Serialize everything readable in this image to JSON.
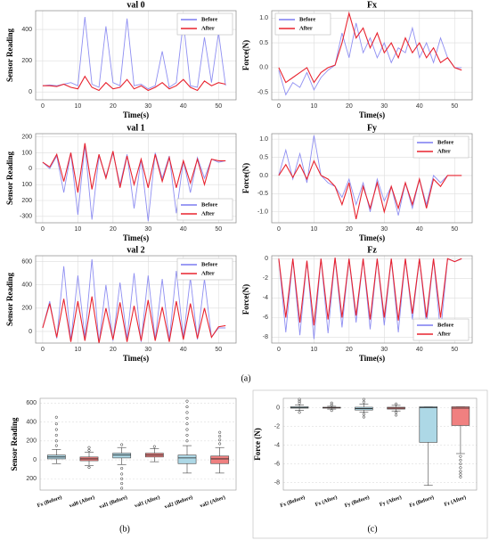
{
  "panel_labels": [
    "(a)",
    "(b)",
    "(c)"
  ],
  "chart_data": [
    {
      "type": "line",
      "title": "val 0",
      "x_label": "Time(s)",
      "y_label": "Sensor Reading",
      "legend": "upper right",
      "grid": true,
      "xlim": [
        -2,
        55
      ],
      "xticks": [
        0,
        10,
        20,
        30,
        40,
        50
      ],
      "ylim": [
        -50,
        520
      ],
      "yticks": [
        0,
        200,
        400
      ],
      "x": [
        0,
        2,
        4,
        6,
        8,
        10,
        12,
        14,
        16,
        18,
        20,
        22,
        24,
        26,
        28,
        30,
        32,
        34,
        36,
        38,
        40,
        42,
        44,
        46,
        48,
        50,
        52
      ],
      "series": [
        {
          "name": "Before",
          "color": "#7b7bf0",
          "values": [
            40,
            45,
            40,
            50,
            60,
            40,
            480,
            50,
            30,
            420,
            60,
            40,
            470,
            40,
            50,
            20,
            40,
            260,
            30,
            60,
            450,
            40,
            30,
            350,
            60,
            380,
            40
          ]
        },
        {
          "name": "After",
          "color": "#e8232f",
          "values": [
            40,
            40,
            35,
            50,
            30,
            20,
            100,
            30,
            10,
            60,
            20,
            30,
            80,
            20,
            40,
            10,
            30,
            60,
            20,
            40,
            80,
            30,
            10,
            70,
            40,
            60,
            50
          ]
        }
      ]
    },
    {
      "type": "line",
      "title": "Fx",
      "x_label": "Time(s)",
      "y_label": "Force(N)",
      "legend": "upper left",
      "grid": true,
      "xlim": [
        -2,
        55
      ],
      "xticks": [
        0,
        10,
        20,
        30,
        40,
        50
      ],
      "ylim": [
        -0.65,
        1.15
      ],
      "yticks": [
        -0.5,
        {
          "value": 0,
          "label": "0.0"
        },
        0.5,
        {
          "value": 1,
          "label": "1.0"
        }
      ],
      "x": [
        0,
        2,
        4,
        6,
        8,
        10,
        12,
        14,
        16,
        18,
        20,
        22,
        24,
        26,
        28,
        30,
        32,
        34,
        36,
        38,
        40,
        42,
        44,
        46,
        48,
        50,
        52
      ],
      "series": [
        {
          "name": "Before",
          "color": "#7b7bf0",
          "values": [
            -0.05,
            -0.55,
            -0.3,
            -0.4,
            -0.1,
            -0.45,
            -0.2,
            -0.05,
            0.05,
            0.7,
            0.2,
            0.9,
            0.3,
            0.6,
            0.2,
            0.5,
            0.1,
            0.4,
            0.3,
            0.8,
            0.2,
            0.5,
            0.1,
            0.6,
            0.2,
            0,
            0
          ]
        },
        {
          "name": "After",
          "color": "#e8232f",
          "values": [
            0,
            -0.3,
            -0.2,
            -0.1,
            0,
            -0.3,
            -0.1,
            0,
            0.05,
            0.5,
            1.1,
            0.6,
            0.8,
            0.4,
            0.7,
            0.3,
            0.5,
            0.2,
            0.6,
            0.3,
            0.5,
            0.2,
            0.4,
            0.1,
            0.2,
            0,
            -0.05
          ]
        }
      ]
    },
    {
      "type": "line",
      "title": "val 1",
      "x_label": "Time(s)",
      "y_label": "Sensor Reading",
      "legend": "lower right",
      "grid": true,
      "xlim": [
        -2,
        55
      ],
      "xticks": [
        0,
        10,
        20,
        30,
        40,
        50
      ],
      "ylim": [
        -340,
        220
      ],
      "yticks": [
        -300,
        {
          "value": -200,
          "label": "200"
        },
        {
          "value": -100,
          "label": "100"
        },
        0,
        100,
        200
      ],
      "x": [
        0,
        2,
        4,
        6,
        8,
        10,
        12,
        14,
        16,
        18,
        20,
        22,
        24,
        26,
        28,
        30,
        32,
        34,
        36,
        38,
        40,
        42,
        44,
        46,
        48,
        50,
        52
      ],
      "series": [
        {
          "name": "Before",
          "color": "#7b7bf0",
          "values": [
            40,
            0,
            80,
            -150,
            100,
            -290,
            150,
            -320,
            80,
            -50,
            100,
            -100,
            90,
            -250,
            60,
            -330,
            100,
            -60,
            80,
            -280,
            50,
            -150,
            70,
            -60,
            60,
            40,
            50
          ]
        },
        {
          "name": "After",
          "color": "#e8232f",
          "values": [
            40,
            10,
            90,
            -80,
            100,
            -150,
            160,
            -130,
            90,
            -60,
            110,
            -120,
            80,
            -100,
            60,
            -120,
            90,
            -80,
            70,
            -120,
            50,
            -90,
            60,
            -100,
            60,
            50,
            50
          ]
        }
      ]
    },
    {
      "type": "line",
      "title": "Fy",
      "x_label": "Time(s)",
      "y_label": "Force(N)",
      "legend": "upper right",
      "grid": true,
      "xlim": [
        -2,
        55
      ],
      "xticks": [
        0,
        10,
        20,
        30,
        40,
        50
      ],
      "ylim": [
        -1.3,
        1.15
      ],
      "yticks": [
        {
          "value": -1,
          "label": "-1.0"
        },
        -0.5,
        {
          "value": 0,
          "label": "0.0"
        },
        0.5,
        {
          "value": 1,
          "label": "1.0"
        }
      ],
      "x": [
        0,
        2,
        4,
        6,
        8,
        10,
        12,
        14,
        16,
        18,
        20,
        22,
        24,
        26,
        28,
        30,
        32,
        34,
        36,
        38,
        40,
        42,
        44,
        46,
        48,
        50,
        52
      ],
      "series": [
        {
          "name": "Before",
          "color": "#7b7bf0",
          "values": [
            0,
            0.7,
            -0.1,
            0.6,
            -0.2,
            1.1,
            0,
            -0.2,
            -0.3,
            -0.6,
            -0.1,
            -0.8,
            -0.2,
            -1.0,
            -0.1,
            -0.7,
            -0.3,
            -1.1,
            -0.2,
            -0.9,
            -0.1,
            -0.8,
            0,
            -0.2,
            0,
            0,
            0
          ]
        },
        {
          "name": "After",
          "color": "#e8232f",
          "values": [
            0,
            0.3,
            -0.05,
            0.3,
            -0.1,
            0.4,
            0,
            -0.1,
            -0.3,
            -0.8,
            -0.2,
            -1.2,
            -0.3,
            -0.9,
            -0.2,
            -1.0,
            -0.3,
            -0.9,
            -0.2,
            -0.8,
            -0.1,
            -0.9,
            -0.1,
            -0.3,
            0,
            0,
            0
          ]
        }
      ]
    },
    {
      "type": "line",
      "title": "val 2",
      "x_label": "Time(s)",
      "y_label": "Sensor Reading",
      "legend": "upper right",
      "grid": true,
      "xlim": [
        -2,
        55
      ],
      "xticks": [
        0,
        10,
        20,
        30,
        40,
        50
      ],
      "ylim": [
        -100,
        650
      ],
      "yticks": [
        0,
        200,
        400,
        600
      ],
      "x": [
        0,
        2,
        4,
        6,
        8,
        10,
        12,
        14,
        16,
        18,
        20,
        22,
        24,
        26,
        28,
        30,
        32,
        34,
        36,
        38,
        40,
        42,
        44,
        46,
        48,
        50,
        52
      ],
      "series": [
        {
          "name": "Before",
          "color": "#7b7bf0",
          "values": [
            30,
            260,
            -60,
            560,
            -80,
            480,
            -50,
            620,
            -100,
            400,
            -80,
            420,
            -60,
            500,
            -90,
            480,
            -70,
            450,
            -80,
            520,
            -60,
            460,
            -70,
            450,
            -50,
            30,
            30
          ]
        },
        {
          "name": "After",
          "color": "#e8232f",
          "values": [
            30,
            240,
            -50,
            280,
            -90,
            260,
            -80,
            300,
            -100,
            200,
            -70,
            250,
            -90,
            220,
            -80,
            270,
            -80,
            210,
            -90,
            260,
            -70,
            240,
            -60,
            200,
            -50,
            40,
            50
          ]
        }
      ]
    },
    {
      "type": "line",
      "title": "Fz",
      "x_label": "Time(s)",
      "y_label": "Force(N)",
      "legend": "lower right",
      "grid": true,
      "xlim": [
        -2,
        55
      ],
      "xticks": [
        0,
        10,
        20,
        30,
        40,
        50
      ],
      "ylim": [
        -8.6,
        0.3
      ],
      "yticks": [
        -8,
        -6,
        -4,
        -2,
        0
      ],
      "x": [
        0,
        2,
        4,
        6,
        8,
        10,
        12,
        14,
        16,
        18,
        20,
        22,
        24,
        26,
        28,
        30,
        32,
        34,
        36,
        38,
        40,
        42,
        44,
        46,
        48,
        50,
        52
      ],
      "series": [
        {
          "name": "Before",
          "color": "#7b7bf0",
          "values": [
            0,
            -7.5,
            0,
            -7.8,
            -0.2,
            -8.2,
            0,
            -7.6,
            0.1,
            -7.0,
            0,
            -6.5,
            0,
            -7.2,
            0,
            -6.8,
            0,
            -7.5,
            0,
            -6.2,
            0,
            -6.8,
            0,
            -7.6,
            0,
            -0.3,
            0
          ]
        },
        {
          "name": "After",
          "color": "#e8232f",
          "values": [
            0,
            -6.0,
            0,
            -6.5,
            -0.2,
            -6.8,
            0,
            -6.2,
            0.1,
            -6.0,
            0,
            -5.8,
            0,
            -6.2,
            0,
            -6.0,
            0,
            -6.3,
            0,
            -5.6,
            0,
            -6.0,
            0,
            -6.0,
            0,
            -0.3,
            0
          ]
        }
      ]
    },
    {
      "type": "box",
      "y_label": "Sensor Reading",
      "grid": true,
      "ylim": [
        -320,
        650
      ],
      "yticks": [
        {
          "value": -200,
          "label": "200"
        },
        0,
        200,
        400,
        600
      ],
      "categories": [
        "Fx (Before)",
        "val0 (After)",
        "val1 (Before)",
        "val1 (After)",
        "val2 (Before)",
        "val2 (After)"
      ],
      "colors": [
        "#add8e6",
        "#f08080",
        "#add8e6",
        "#f08080",
        "#add8e6",
        "#f08080"
      ],
      "boxes": [
        {
          "min": -40,
          "q1": 10,
          "median": 30,
          "q3": 50,
          "max": 110,
          "outliers": [
            150,
            200,
            260,
            320,
            380,
            450
          ]
        },
        {
          "min": -60,
          "q1": -10,
          "median": 10,
          "q3": 30,
          "max": 80,
          "outliers": [
            100,
            130,
            -80
          ]
        },
        {
          "min": -50,
          "q1": 20,
          "median": 50,
          "q3": 70,
          "max": 130,
          "outliers": [
            160,
            -90,
            -150,
            -200,
            -250,
            -300
          ]
        },
        {
          "min": -20,
          "q1": 30,
          "median": 50,
          "q3": 70,
          "max": 120,
          "outliers": [
            140
          ]
        },
        {
          "min": -140,
          "q1": -40,
          "median": 20,
          "q3": 50,
          "max": 150,
          "outliers": [
            200,
            260,
            320,
            380,
            440,
            500,
            560,
            620
          ]
        },
        {
          "min": -140,
          "q1": -40,
          "median": 10,
          "q3": 40,
          "max": 130,
          "outliers": [
            170,
            210,
            250,
            290
          ]
        }
      ]
    },
    {
      "type": "box",
      "y_label": "Force (N)",
      "grid": true,
      "ylim": [
        -8.8,
        1.0
      ],
      "yticks": [
        -8,
        -6,
        -4,
        -2,
        0
      ],
      "categories": [
        "Fx (Before)",
        "Fx (After)",
        "Fy (Before)",
        "Fy (After)",
        "Fz (Before)",
        "Fz (After)"
      ],
      "colors": [
        "#add8e6",
        "#f08080",
        "#add8e6",
        "#f08080",
        "#add8e6",
        "#f08080"
      ],
      "boxes": [
        {
          "min": -0.3,
          "q1": -0.05,
          "median": 0,
          "q3": 0.1,
          "max": 0.3,
          "outliers": [
            0.5,
            0.7,
            0.9,
            -0.5
          ]
        },
        {
          "min": -0.15,
          "q1": -0.05,
          "median": 0,
          "q3": 0.05,
          "max": 0.15,
          "outliers": [
            0.3,
            0.5,
            -0.3
          ]
        },
        {
          "min": -0.5,
          "q1": -0.25,
          "median": -0.1,
          "q3": 0.05,
          "max": 0.4,
          "outliers": [
            0.6,
            0.9,
            -0.7,
            -1.0
          ]
        },
        {
          "min": -0.35,
          "q1": -0.15,
          "median": -0.05,
          "q3": 0.05,
          "max": 0.25,
          "outliers": [
            0.4,
            -0.5,
            -0.8
          ]
        },
        {
          "min": -8.3,
          "q1": -3.7,
          "median": 0,
          "q3": 0.1,
          "max": 0.1,
          "outliers": []
        },
        {
          "min": -4.9,
          "q1": -1.9,
          "median": -0.05,
          "q3": 0.1,
          "max": 0.1,
          "outliers": [
            -5.2,
            -5.6,
            -6.0,
            -6.4,
            -6.8,
            -7.1,
            -7.4
          ]
        }
      ]
    }
  ]
}
